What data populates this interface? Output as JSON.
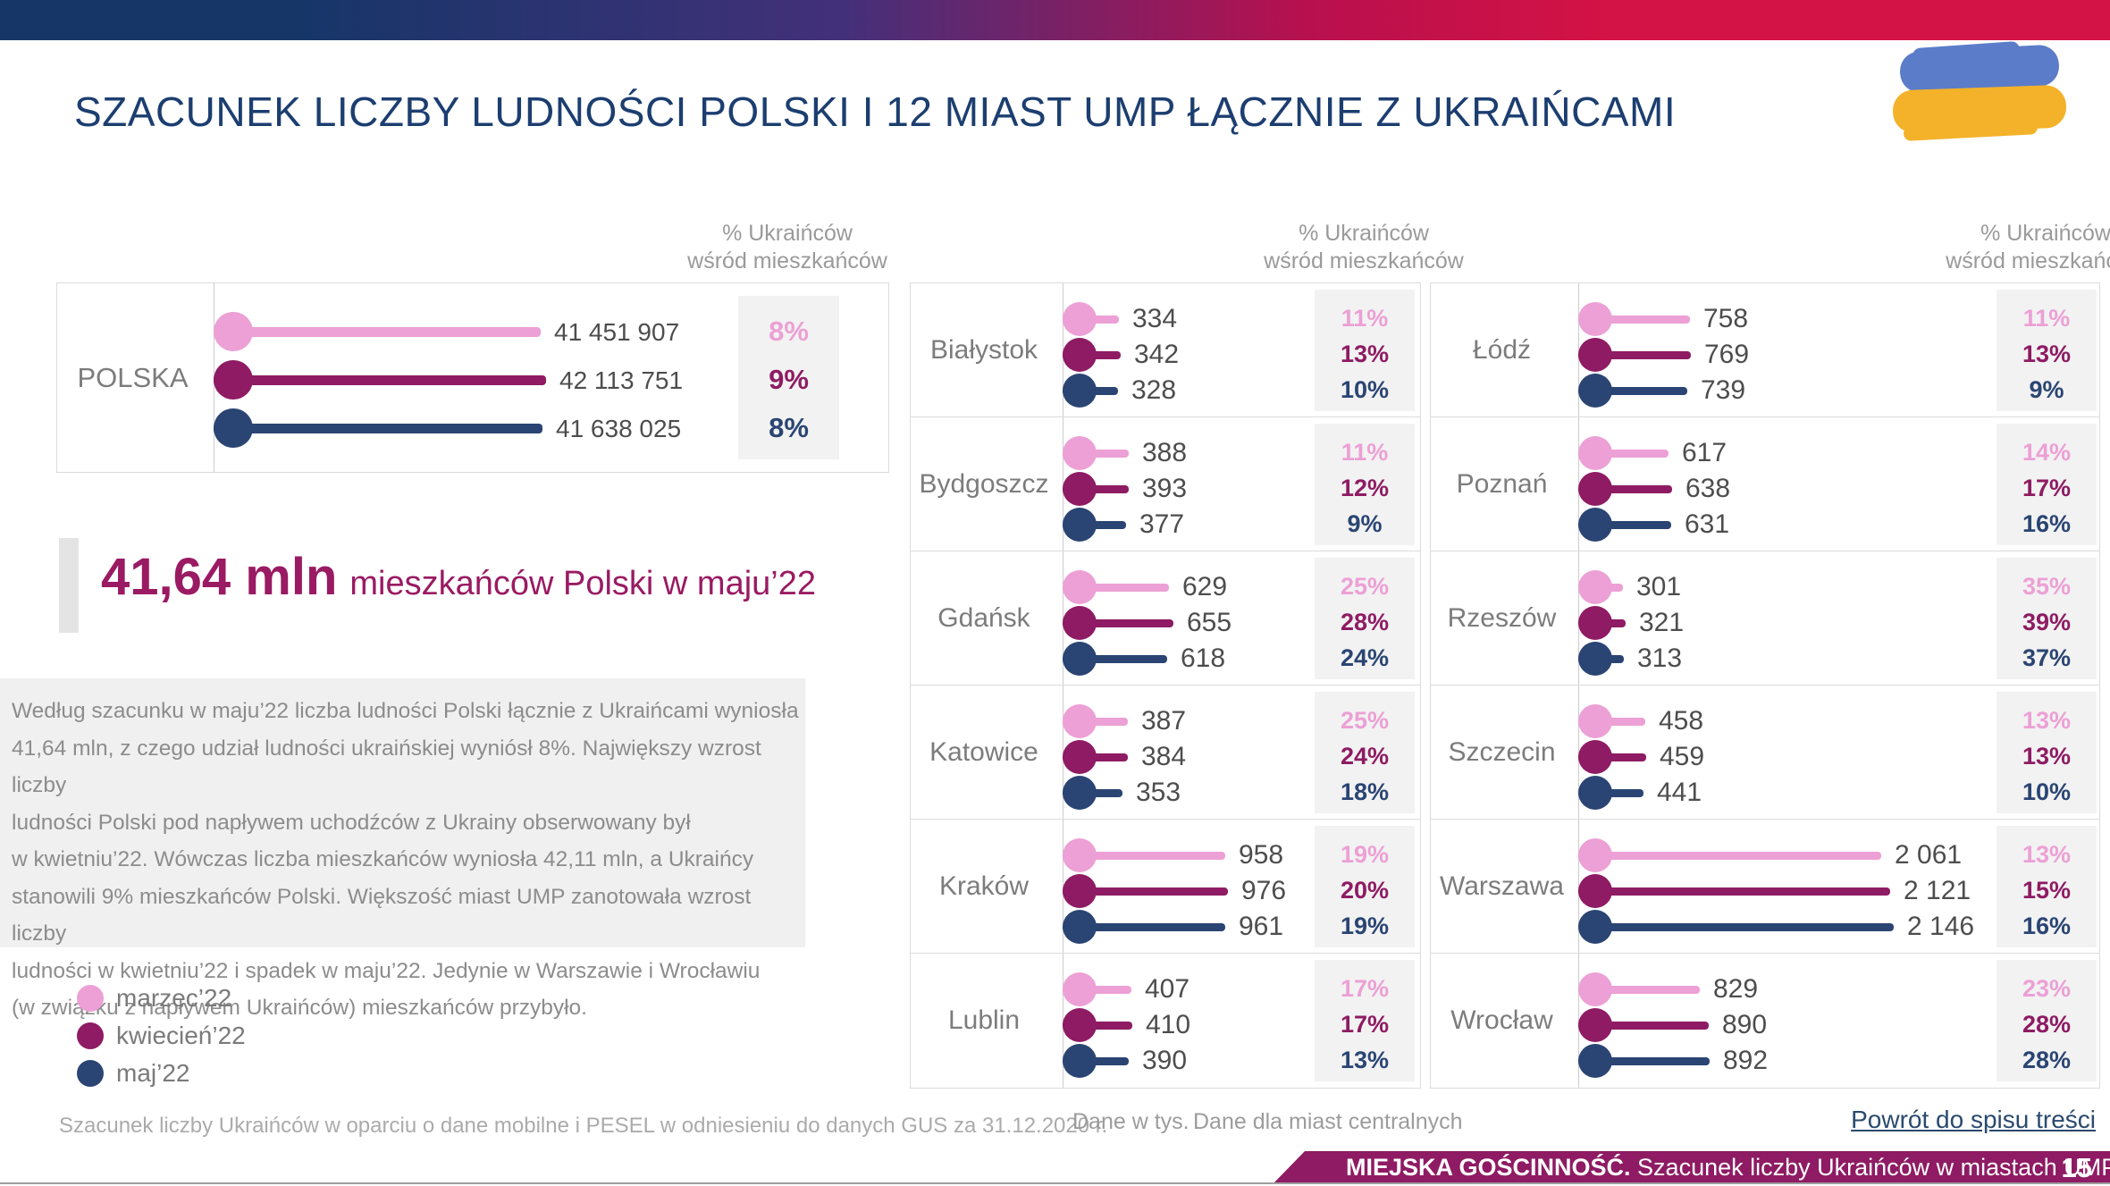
{
  "header": {
    "title": "SZACUNEK LICZBY LUDNOŚCI POLSKI I 12 MIAST UMP ŁĄCZNIE Z UKRAIŃCAMI"
  },
  "percent_header": [
    "% Ukraińców",
    "wśród mieszkańców"
  ],
  "highlight": {
    "big": "41,64 mln",
    "rest": "mieszkańców Polski w maju’22"
  },
  "paragraph_lines": [
    "Według szacunku w maju’22 liczba ludności Polski łącznie z Ukraińcami wyniosła",
    "41,64 mln, z czego udział ludności ukraińskiej wyniósł 8%. Największy wzrost liczby",
    "ludności Polski pod napływem uchodźców z Ukrainy obserwowany był",
    "w kwietniu’22. Wówczas liczba mieszkańców wyniosła 42,11 mln, a Ukraińcy",
    "stanowili 9% mieszkańców Polski. Większość miast UMP zanotowała wzrost liczby",
    "ludności w kwietniu’22 i spadek w maju’22. Jedynie w Warszawie i Wrocławiu",
    "(w związku z napływem Ukraińców) mieszkańców przybyło."
  ],
  "footnote": "Szacunek liczby Ukraińców w oparciu o dane mobilne i PESEL w odniesieniu do danych GUS za 31.12.2020 r.",
  "notes": {
    "units": "Dane w tys.",
    "central": "Dane dla miast centralnych"
  },
  "back_link": "Powrót do spisu treści",
  "footer": {
    "bold": "MIEJSKA GOŚCINNOŚĆ.",
    "rest": " Szacunek liczby Ukraińców w miastach UMP - aktualizacja",
    "page": "15"
  },
  "colors": {
    "pink": "#ECA0D5",
    "magenta": "#8E1B63",
    "navy": "#2A4573",
    "title_navy": "#1C3E70",
    "footer_magenta": "#8E1B63",
    "flag_blue": "#5B7CC9",
    "flag_yellow": "#F3B229"
  },
  "chart_data": {
    "type": "bar",
    "subtype": "horizontal-lollipop",
    "series": [
      "marzec’22",
      "kwiecień’22",
      "maj’22"
    ],
    "series_colors": [
      "#ECA0D5",
      "#8E1B63",
      "#2A4573"
    ],
    "percent_column_title": "% Ukraińców wśród mieszkańców",
    "unit_note": "Dane w tys.",
    "scope_note": "Dane dla miast centralnych",
    "poland": {
      "label": "POLSKA",
      "values": [
        41451907,
        42113751,
        41638025
      ],
      "value_labels": [
        "41 451 907",
        "42 113 751",
        "41 638 025"
      ],
      "percent_labels": [
        "8%",
        "9%",
        "8%"
      ]
    },
    "cities_left": [
      {
        "label": "Białystok",
        "values": [
          334,
          342,
          328
        ],
        "value_labels": [
          "334",
          "342",
          "328"
        ],
        "percent_labels": [
          "11%",
          "13%",
          "10%"
        ]
      },
      {
        "label": "Bydgoszcz",
        "values": [
          388,
          393,
          377
        ],
        "value_labels": [
          "388",
          "393",
          "377"
        ],
        "percent_labels": [
          "11%",
          "12%",
          "9%"
        ]
      },
      {
        "label": "Gdańsk",
        "values": [
          629,
          655,
          618
        ],
        "value_labels": [
          "629",
          "655",
          "618"
        ],
        "percent_labels": [
          "25%",
          "28%",
          "24%"
        ]
      },
      {
        "label": "Katowice",
        "values": [
          387,
          384,
          353
        ],
        "value_labels": [
          "387",
          "384",
          "353"
        ],
        "percent_labels": [
          "25%",
          "24%",
          "18%"
        ]
      },
      {
        "label": "Kraków",
        "values": [
          958,
          976,
          961
        ],
        "value_labels": [
          "958",
          "976",
          "961"
        ],
        "percent_labels": [
          "19%",
          "20%",
          "19%"
        ]
      },
      {
        "label": "Lublin",
        "values": [
          407,
          410,
          390
        ],
        "value_labels": [
          "407",
          "410",
          "390"
        ],
        "percent_labels": [
          "17%",
          "17%",
          "13%"
        ]
      }
    ],
    "cities_right": [
      {
        "label": "Łódź",
        "values": [
          758,
          769,
          739
        ],
        "value_labels": [
          "758",
          "769",
          "739"
        ],
        "percent_labels": [
          "11%",
          "13%",
          "9%"
        ]
      },
      {
        "label": "Poznań",
        "values": [
          617,
          638,
          631
        ],
        "value_labels": [
          "617",
          "638",
          "631"
        ],
        "percent_labels": [
          "14%",
          "17%",
          "16%"
        ]
      },
      {
        "label": "Rzeszów",
        "values": [
          301,
          321,
          313
        ],
        "value_labels": [
          "301",
          "321",
          "313"
        ],
        "percent_labels": [
          "35%",
          "39%",
          "37%"
        ]
      },
      {
        "label": "Szczecin",
        "values": [
          458,
          459,
          441
        ],
        "value_labels": [
          "458",
          "459",
          "441"
        ],
        "percent_labels": [
          "13%",
          "13%",
          "10%"
        ]
      },
      {
        "label": "Warszawa",
        "values": [
          2061,
          2121,
          2146
        ],
        "value_labels": [
          "2 061",
          "2 121",
          "2 146"
        ],
        "percent_labels": [
          "13%",
          "15%",
          "16%"
        ]
      },
      {
        "label": "Wrocław",
        "values": [
          829,
          890,
          892
        ],
        "value_labels": [
          "829",
          "890",
          "892"
        ],
        "percent_labels": [
          "23%",
          "28%",
          "28%"
        ]
      }
    ]
  }
}
